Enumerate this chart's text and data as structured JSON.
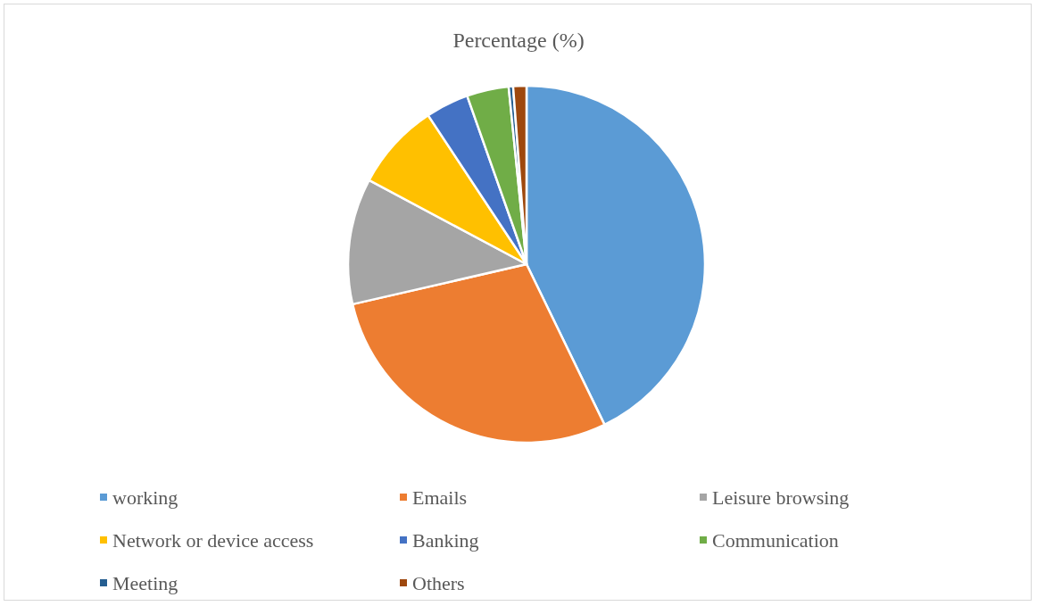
{
  "chart_data": {
    "type": "pie",
    "title": "Percentage (%)",
    "categories": [
      "working",
      "Emails",
      "Leisure browsing",
      "Network or device access",
      "Banking",
      "Communication",
      "Meeting",
      "Others"
    ],
    "values": [
      42.8,
      28.6,
      11.4,
      7.9,
      3.9,
      3.8,
      0.4,
      1.2
    ],
    "colors": [
      "#5b9bd5",
      "#ed7d31",
      "#a5a5a5",
      "#ffc000",
      "#4472c4",
      "#70ad47",
      "#255e91",
      "#9e480e"
    ],
    "legend": "bottom"
  }
}
